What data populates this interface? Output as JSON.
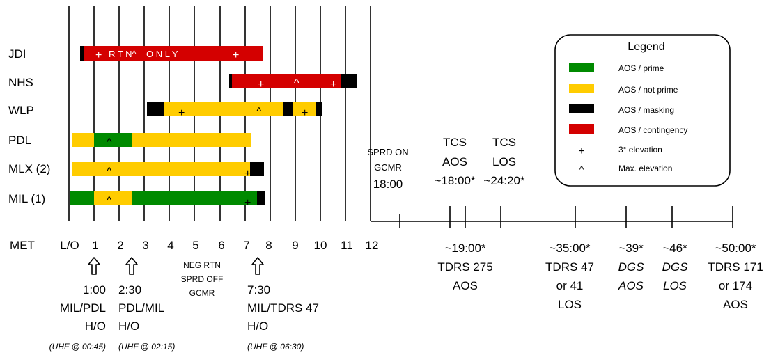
{
  "stations": {
    "jdi": "JDI",
    "nhs": "NHS",
    "wlp": "WLP",
    "pdl": "PDL",
    "mlx": "MLX (2)",
    "mil": "MIL  (1)"
  },
  "bar_text": {
    "jdi_banner": "R T N^    O N L Y",
    "plus": "+",
    "caret": "^"
  },
  "axis": {
    "met_label": "MET",
    "lo_label": "L/O",
    "ticks": [
      "1",
      "2",
      "3",
      "4",
      "5",
      "6",
      "7",
      "8",
      "9",
      "10",
      "11",
      "12"
    ]
  },
  "events_upper": {
    "sprd_on": [
      "SPRD ON",
      "GCMR",
      "18:00"
    ],
    "tcs_aos": [
      "TCS",
      "AOS",
      "~18:00*"
    ],
    "tcs_los": [
      "TCS",
      "LOS",
      "~24:20*"
    ]
  },
  "events_lower": {
    "tdrs275": [
      "~19:00*",
      "TDRS 275",
      "AOS"
    ],
    "tdrs47": [
      "~35:00*",
      "TDRS 47",
      "or 41",
      "LOS"
    ],
    "dgs_aos": [
      "~39*",
      "DGS",
      "AOS"
    ],
    "dgs_los": [
      "~46*",
      "DGS",
      "LOS"
    ],
    "tdrs171": [
      "~50:00*",
      "TDRS 171",
      "or 174",
      "AOS"
    ]
  },
  "handovers": {
    "h1": [
      "1:00",
      "MIL/PDL",
      "H/O"
    ],
    "h1_uhf": "(UHF  @ 00:45)",
    "h2": [
      "2:30",
      "PDL/MIL",
      "H/O"
    ],
    "h2_uhf": "(UHF  @ 02:15)",
    "neg": [
      "NEG RTN",
      "SPRD OFF",
      "GCMR"
    ],
    "h3": [
      "7:30",
      "MIL/TDRS 47",
      "H/O"
    ],
    "h3_uhf": "(UHF  @ 06:30)"
  },
  "legend": {
    "title": "Legend",
    "items": [
      {
        "label": "AOS / prime",
        "color": "#008a00"
      },
      {
        "label": "AOS / not prime",
        "color": "#ffcc00"
      },
      {
        "label": "AOS / masking",
        "color": "#000000"
      },
      {
        "label": "AOS / contingency",
        "color": "#d40000"
      }
    ],
    "elev_3": "3° elevation",
    "max_elev": "Max. elevation",
    "plus_symbol": "+",
    "caret_symbol": "^"
  },
  "colors": {
    "prime": "#008a00",
    "not_prime": "#ffcc00",
    "masking": "#000000",
    "contingency": "#d40000"
  }
}
